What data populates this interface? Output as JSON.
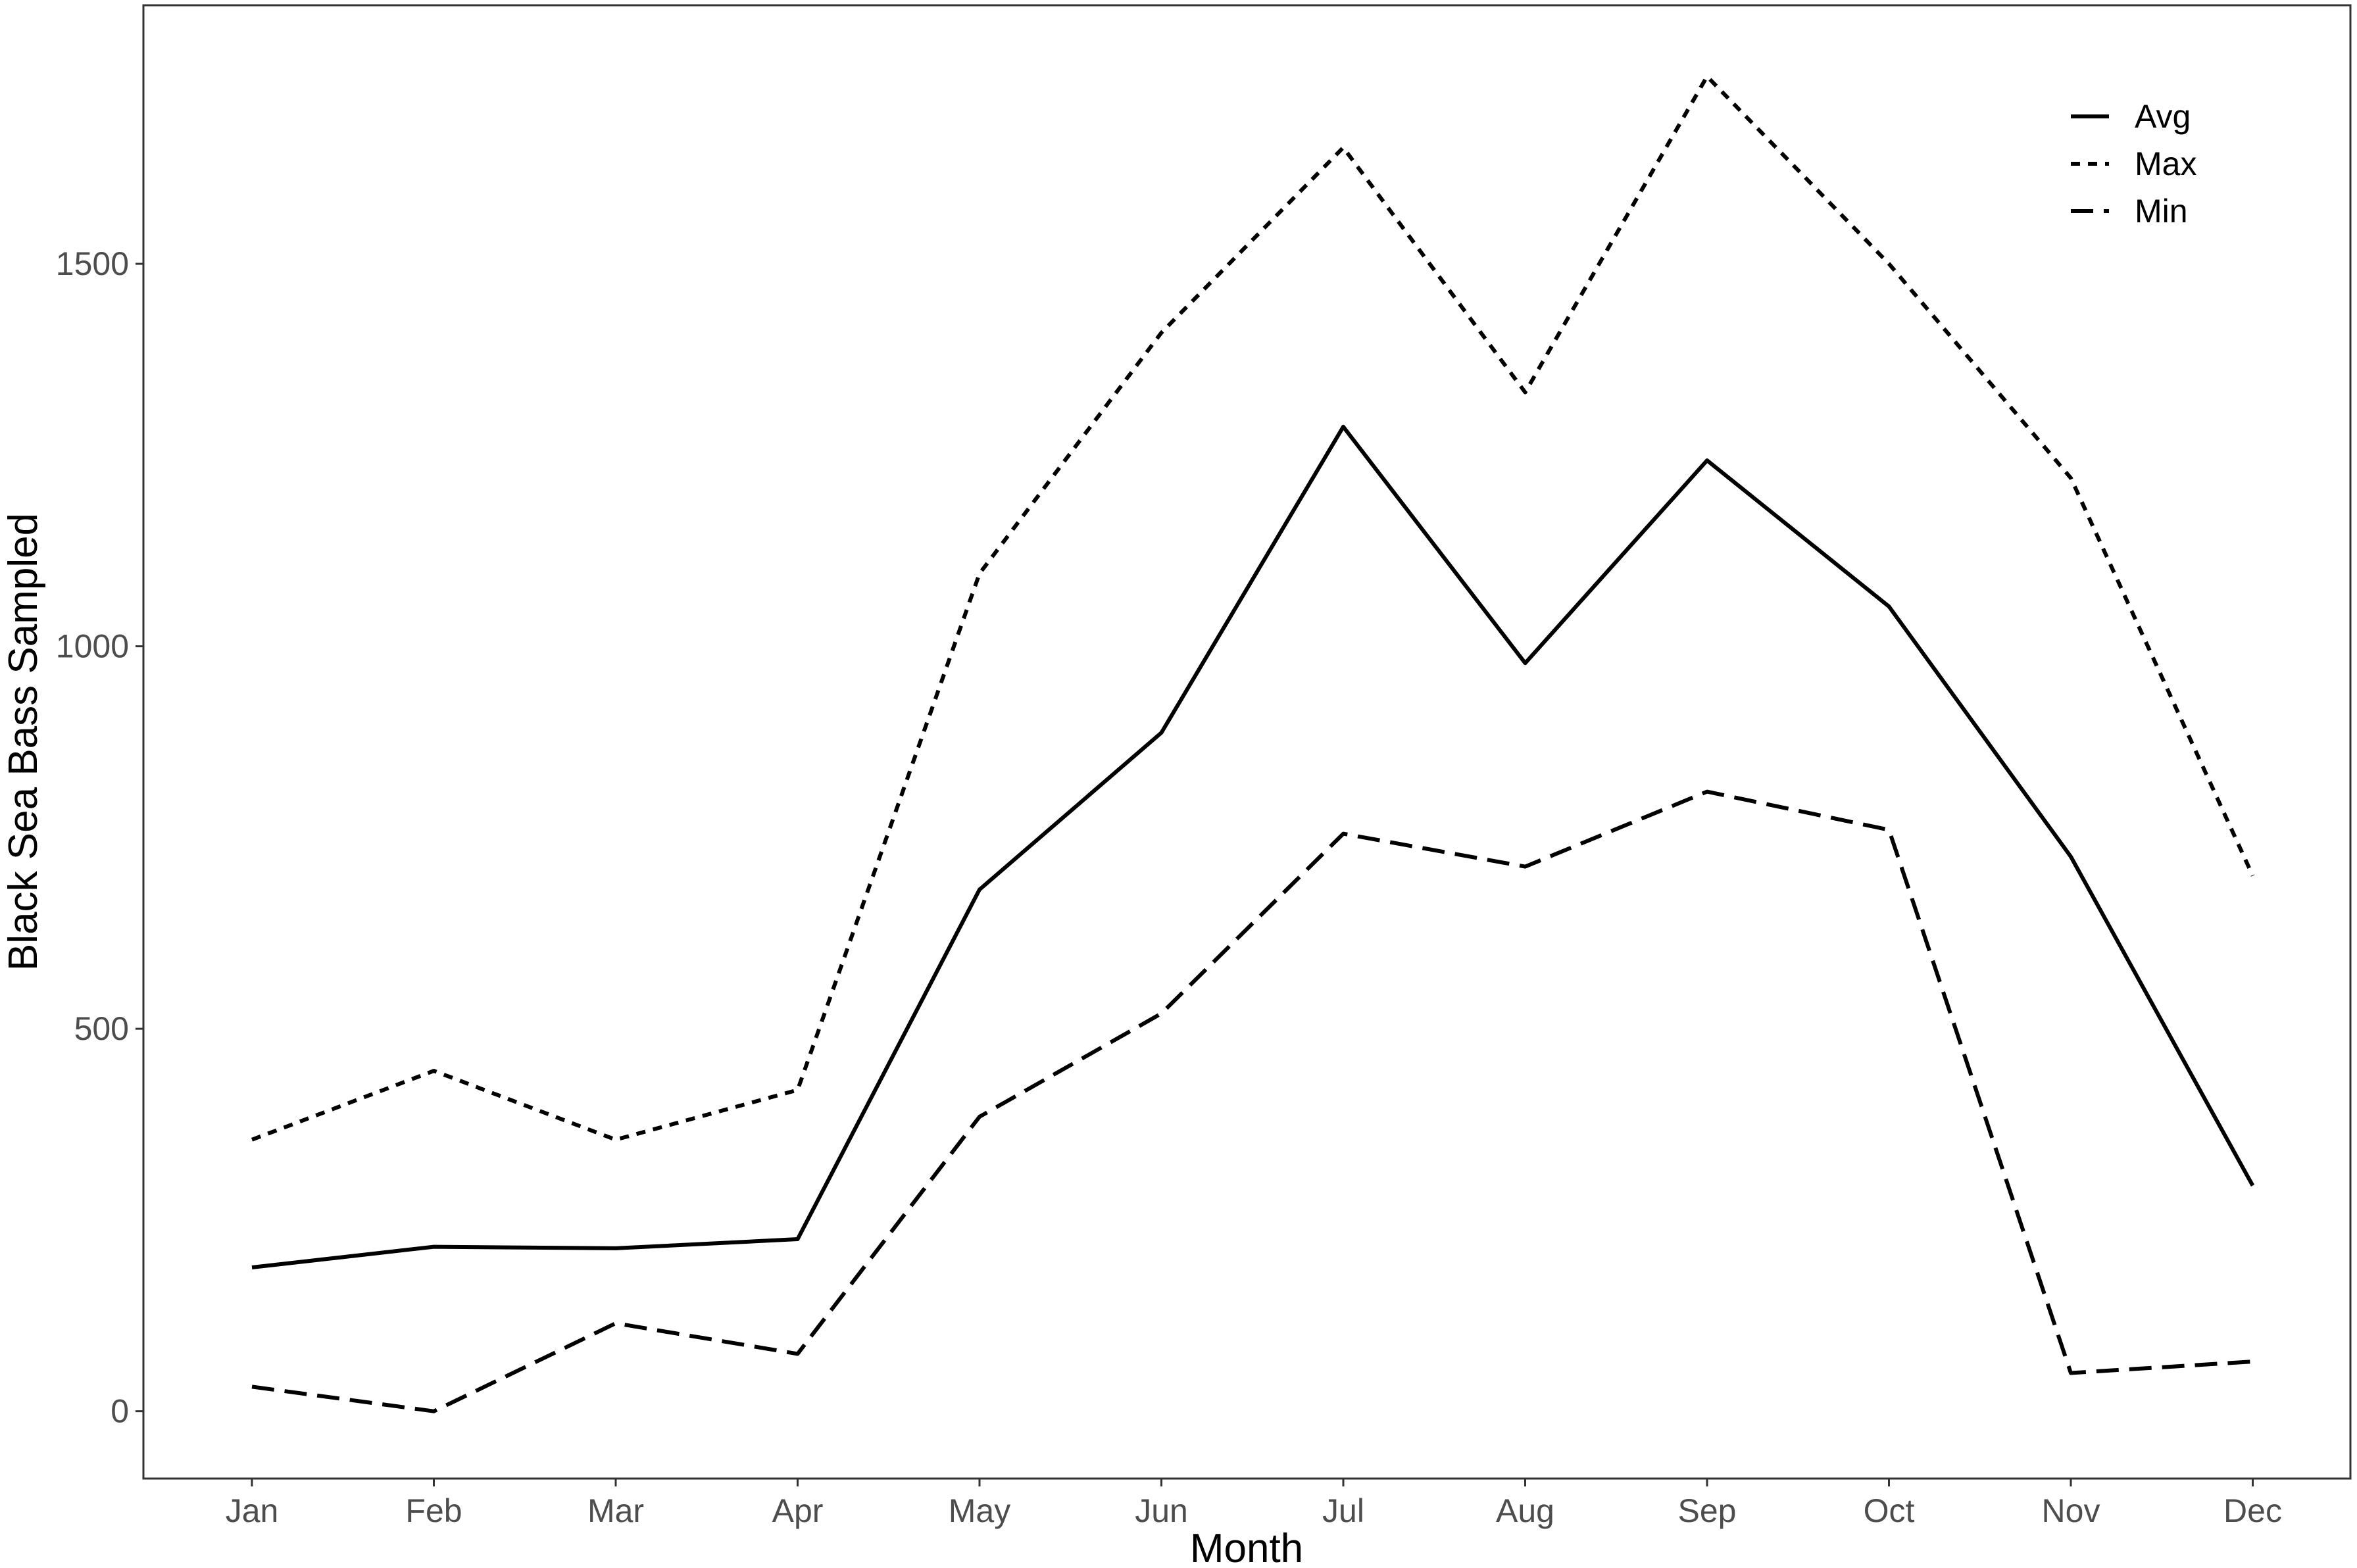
{
  "chart_data": {
    "type": "line",
    "categories": [
      "Jan",
      "Feb",
      "Mar",
      "Apr",
      "May",
      "Jun",
      "Jul",
      "Aug",
      "Sep",
      "Oct",
      "Nov",
      "Dec"
    ],
    "series": [
      {
        "name": "Avg",
        "linestyle": "solid",
        "values": [
          188,
          215,
          213,
          225,
          682,
          887,
          1287,
          978,
          1243,
          1052,
          725,
          295
        ]
      },
      {
        "name": "Max",
        "linestyle": "dotted",
        "values": [
          355,
          445,
          355,
          420,
          1095,
          1410,
          1652,
          1332,
          1745,
          1500,
          1220,
          700
        ]
      },
      {
        "name": "Min",
        "linestyle": "dashed",
        "values": [
          32,
          0,
          115,
          75,
          385,
          520,
          755,
          712,
          810,
          760,
          50,
          65
        ]
      }
    ],
    "xlabel": "Month",
    "ylabel": "Black Sea Bass Sampled",
    "ylim": [
      -88,
      1838
    ],
    "yticks": [
      0,
      500,
      1000,
      1500
    ],
    "grid": false,
    "legend_position": "top-right",
    "line_color": "#000000"
  }
}
